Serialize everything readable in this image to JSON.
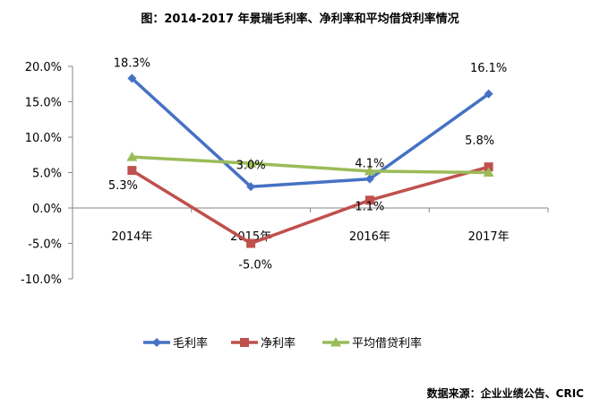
{
  "chart_data": {
    "type": "line",
    "title": "图：2014-2017 年景瑞毛利率、净利率和平均借贷利率情况",
    "categories": [
      "2014年",
      "2015年",
      "2016年",
      "2017年"
    ],
    "y_ticks": [
      "20.0%",
      "15.0%",
      "10.0%",
      "5.0%",
      "0.0%",
      "-5.0%",
      "-10.0%"
    ],
    "ylim": [
      -10,
      20
    ],
    "series": [
      {
        "name": "毛利率",
        "color": "#4472C4",
        "marker": "diamond",
        "values": [
          18.3,
          3.0,
          4.1,
          16.1
        ],
        "labels": [
          "18.3%",
          "3.0%",
          "4.1%",
          "16.1%"
        ]
      },
      {
        "name": "净利率",
        "color": "#C0504D",
        "marker": "square",
        "values": [
          5.3,
          -5.0,
          1.1,
          5.8
        ],
        "labels": [
          "5.3%",
          "-5.0%",
          "1.1%",
          "5.8%"
        ]
      },
      {
        "name": "平均借贷利率",
        "color": "#9BBB59",
        "marker": "triangle",
        "values": [
          7.2,
          6.3,
          5.2,
          5.0
        ],
        "labels": []
      }
    ],
    "legend_position": "bottom",
    "grid": false
  },
  "source": "数据来源：企业业绩公告、CRIC"
}
